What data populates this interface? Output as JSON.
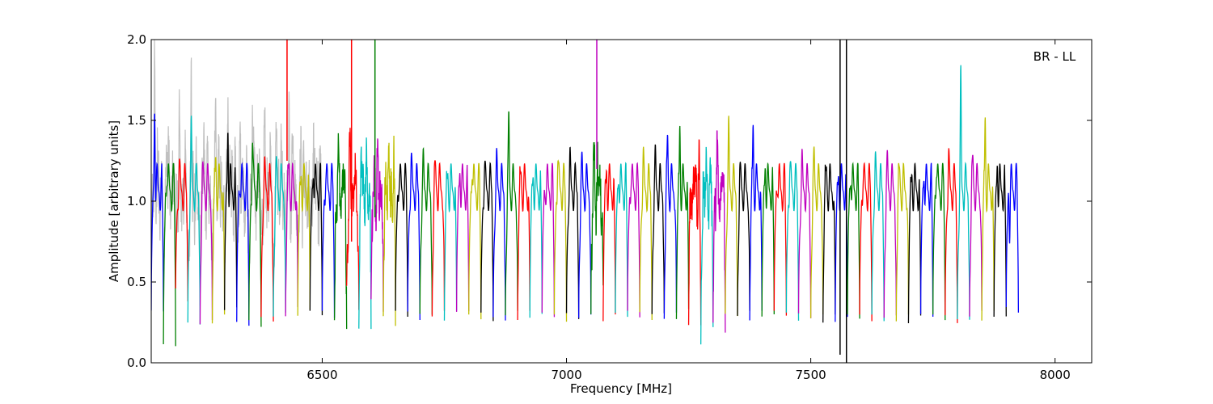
{
  "chart_data": {
    "type": "line",
    "title": "",
    "annotation": "BR - LL",
    "xlabel": "Frequency [MHz]",
    "ylabel": "Amplitude [arbitrary units]",
    "xlim": [
      6150,
      8075
    ],
    "ylim": [
      0.0,
      2.0
    ],
    "xticks": [
      6500,
      7000,
      7500,
      8000
    ],
    "xtick_labels": [
      "6500",
      "7000",
      "7500",
      "8000"
    ],
    "yticks": [
      0.0,
      0.5,
      1.0,
      1.5,
      2.0
    ],
    "ytick_labels": [
      "0.0",
      "0.5",
      "1.0",
      "1.5",
      "2.0"
    ],
    "grid": false,
    "legend": "none",
    "color_cycle": [
      "#0000ff",
      "#008000",
      "#ff0000",
      "#00bfbf",
      "#bf00bf",
      "#bfbf00",
      "#000000"
    ],
    "background_trace_color": "#c0c0c0",
    "channel_start_mhz": 6150,
    "channel_width_mhz": 25,
    "channel_peaks": [
      1.75,
      1.35,
      1.3,
      1.5,
      1.25,
      1.4,
      1.6,
      1.3,
      1.5,
      1.25,
      1.28,
      1.35,
      1.3,
      1.38,
      1.3,
      1.3,
      1.3,
      1.35,
      1.3,
      1.3,
      1.3,
      1.33,
      1.3,
      1.3,
      1.3,
      1.35,
      1.4,
      1.3,
      1.3,
      1.6,
      1.3,
      1.3,
      1.25,
      1.4,
      1.32,
      1.3,
      1.35,
      1.33,
      1.32,
      1.3,
      1.35,
      1.33,
      1.5,
      1.6,
      1.2,
      1.25,
      1.32,
      1.5,
      1.25,
      1.6,
      1.37,
      1.3,
      1.33,
      1.3,
      1.35,
      1.33,
      1.3,
      1.33,
      1.3,
      1.3,
      1.3,
      1.3,
      1.3,
      1.33,
      1.38,
      1.36,
      1.82,
      1.35,
      1.65,
      1.4,
      1.0
    ],
    "channel_dips": [
      0.3,
      0.1,
      0.4,
      0.23,
      0.23,
      0.26,
      0.32,
      0.22,
      0.23,
      0.26,
      0.27,
      0.3,
      0.3,
      0.28,
      0.28,
      0.3,
      0.28,
      0.27,
      0.27,
      0.28,
      0.28,
      0.28,
      0.28,
      0.28,
      0.28,
      0.3,
      0.26,
      0.27,
      0.26,
      0.28,
      0.28,
      0.28,
      0.27,
      0.26,
      0.28,
      0.26,
      0.26,
      0.27,
      0.27,
      0.28,
      0.28,
      0.28,
      0.27,
      0.29,
      0.27,
      0.05,
      0.27,
      0.28,
      0.28,
      0.28,
      0.28,
      0.28,
      0.27,
      0.28,
      0.26,
      0.26,
      0.26,
      0.26,
      0.26,
      0.27,
      0.26,
      0.26,
      0.26,
      0.27,
      0.26,
      0.26,
      0.25,
      0.28,
      0.28,
      0.27,
      0.3
    ],
    "spikes": [
      {
        "x": 6428,
        "y_from": 1.25,
        "y_to": 2.0,
        "color": "#ff0000"
      },
      {
        "x": 6560,
        "y_from": 0.75,
        "y_to": 2.0,
        "color": "#ff0000"
      },
      {
        "x": 6608,
        "y_from": 0.9,
        "y_to": 2.0,
        "color": "#008000"
      },
      {
        "x": 7062,
        "y_from": 1.2,
        "y_to": 2.0,
        "color": "#bf00bf"
      },
      {
        "x": 7560,
        "y_from": 0.05,
        "y_to": 2.0,
        "color": "#000000"
      },
      {
        "x": 7573,
        "y_from": 0.0,
        "y_to": 2.0,
        "color": "#000000"
      }
    ]
  }
}
